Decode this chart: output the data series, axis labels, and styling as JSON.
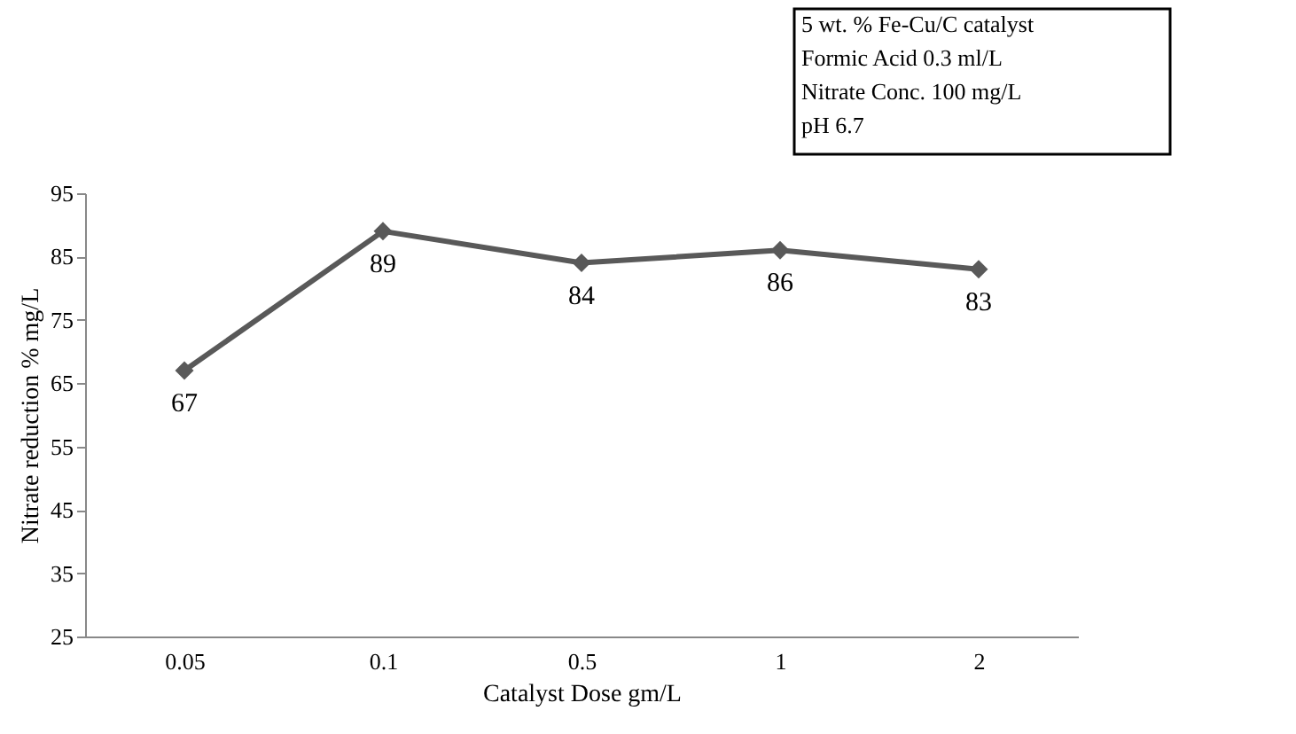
{
  "chart_data": {
    "type": "line",
    "xlabel": "Catalyst Dose gm/L",
    "ylabel": "Nitrate reduction % mg/L",
    "categories": [
      "0.05",
      "0.1",
      "0.5",
      "1",
      "2"
    ],
    "series": [
      {
        "color": "#595959",
        "values": [
          67,
          89,
          84,
          86,
          83
        ]
      }
    ],
    "ylim": [
      25,
      95
    ],
    "yticks": [
      25,
      35,
      45,
      55,
      65,
      75,
      85,
      95
    ],
    "data_labels": true,
    "marker": "diamond",
    "line_style": "solid",
    "grid": false,
    "annotations": [
      "5 wt. % Fe-Cu/C catalyst",
      "Formic Acid 0.3 ml/L",
      "Nitrate Conc. 100 mg/L",
      "pH 6.7"
    ]
  }
}
